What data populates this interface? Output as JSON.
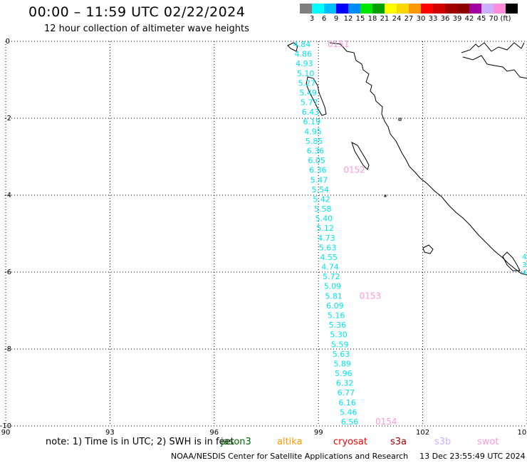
{
  "header": {
    "title": "00:00 – 11:59 UTC 02/22/2024",
    "subtitle": "12 hour collection of altimeter wave heights"
  },
  "legend": {
    "colors": [
      "#7f7f7f",
      "#00ffff",
      "#00bfff",
      "#0000ff",
      "#008cff",
      "#00e600",
      "#00a000",
      "#ffff00",
      "#ffd700",
      "#ff9900",
      "#ff0000",
      "#d00000",
      "#a00000",
      "#8b0000",
      "#a000a0",
      "#cbb0ff",
      "#ff8cd9",
      "#000000"
    ],
    "labels": [
      "3",
      "6",
      "9",
      "12",
      "15",
      "18",
      "21",
      "24",
      "27",
      "30",
      "33",
      "36",
      "39",
      "42",
      "45",
      "70",
      "(ft)"
    ]
  },
  "axes": {
    "y_ticks": [
      "0",
      "-2",
      "-4",
      "-6",
      "-8",
      "-10"
    ],
    "x_ticks": [
      "90",
      "93",
      "96",
      "99",
      "102",
      "105"
    ],
    "lat_range": [
      -10,
      0
    ],
    "lon_range": [
      90,
      105
    ]
  },
  "track": {
    "color": "#00e5ee",
    "values": [
      "4.84",
      "4.86",
      "4.93",
      "5.10",
      "5.27",
      "5.49",
      "5.77",
      "6.43",
      "6.19",
      "4.95",
      "5.85",
      "6.36",
      "6.05",
      "6.36",
      "5.47",
      "5.54",
      "5.42",
      "5.58",
      "5.40",
      "5.12",
      "4.73",
      "5.63",
      "4.55",
      "4.74",
      "5.72",
      "5.09",
      "5.81",
      "6.09",
      "5.16",
      "5.36",
      "5.30",
      "5.59",
      "5.63",
      "5.89",
      "5.96",
      "6.32",
      "6.77",
      "6.16",
      "5.46",
      "6.56"
    ],
    "time_color": "#ff99dd",
    "times": [
      "0151",
      "0152",
      "0153",
      "0154"
    ],
    "edge_values": [
      "4.8",
      "3",
      "4"
    ]
  },
  "note": "note: 1) Time is in UTC; 2) SWH is in feet",
  "satellites": [
    {
      "name": "jason3",
      "color": "#006400"
    },
    {
      "name": "altika",
      "color": "#ff9900"
    },
    {
      "name": "cryosat",
      "color": "#ff0000"
    },
    {
      "name": "s3a",
      "color": "#a00000"
    },
    {
      "name": "s3b",
      "color": "#c8b4ff"
    },
    {
      "name": "swot",
      "color": "#ff99dd"
    }
  ],
  "footer": {
    "source": "NOAA/NESDIS Center for Satellite Applications and Research",
    "timestamp": "13 Dec 23:55:49 UTC 2024"
  }
}
